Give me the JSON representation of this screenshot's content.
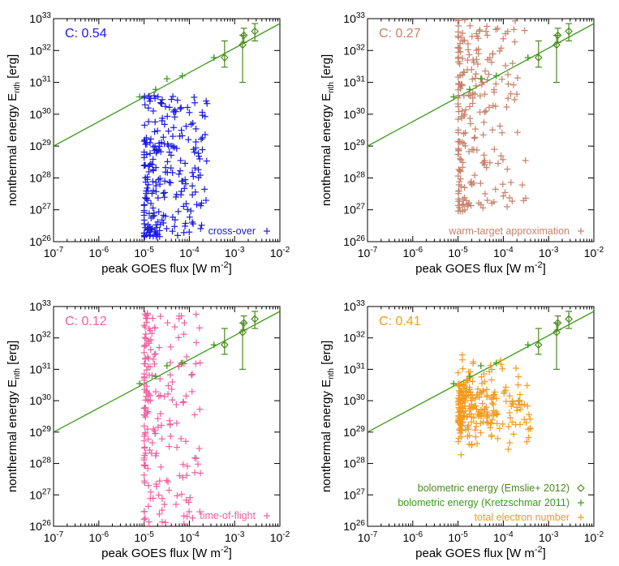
{
  "figure": {
    "colors": {
      "fit_line": "#3a9a1a",
      "emslie": "#4a8a1a",
      "kretzschmar": "#3a9a1a",
      "axis": "#000000"
    }
  },
  "chart_data": [
    {
      "type": "scatter",
      "id": "p1",
      "title": "",
      "xlabel": "peak GOES flux [W m-2]",
      "ylabel": "nonthermal energy E_nth [erg]",
      "xscale": "log",
      "yscale": "log",
      "xlim": [
        1e-07,
        0.01
      ],
      "ylim": [
        1e+26,
        1e+33
      ],
      "x_ticks": [
        "10^-7",
        "10^-6",
        "10^-5",
        "10^-4",
        "10^-3",
        "10^-2"
      ],
      "y_ticks": [
        "10^26",
        "10^27",
        "10^28",
        "10^29",
        "10^30",
        "10^31",
        "10^32",
        "10^33"
      ],
      "correlation_label": "C: 0.54",
      "legend_label": "cross-over",
      "color": "#1a1ae0",
      "fit_line": {
        "x": [
          1e-07,
          0.01
        ],
        "y": [
          1e+29,
          7e+32
        ]
      },
      "emslie": {
        "x": [
          0.0006,
          0.0015,
          0.0028,
          0.0016
        ],
        "y": [
          6e+31,
          1.5e+32,
          4e+32,
          3e+32
        ],
        "ylo": [
          3e+31,
          1e+31,
          2e+32,
          1.8e+32
        ],
        "yhi": [
          2e+32,
          3e+32,
          7e+32,
          5e+32
        ]
      },
      "kretzschmar": {
        "x": [
          8e-06,
          1.8e-05,
          3.2e-05,
          7e-05,
          0.00035
        ],
        "y": [
          3.5e+30,
          6e+30,
          1.3e+31,
          1.6e+31,
          6e+31
        ]
      },
      "points": {
        "count": 250,
        "seed": 11,
        "xmin_exp": -5.0,
        "xmax_exp": -3.6,
        "ymin_exp": 26.15,
        "ymax_exp": 30.6,
        "skew": 0.5,
        "n_floor": 20
      }
    },
    {
      "type": "scatter",
      "id": "p2",
      "title": "",
      "xlabel": "peak GOES flux [W m-2]",
      "ylabel": "nonthermal energy E_nth [erg]",
      "xscale": "log",
      "yscale": "log",
      "xlim": [
        1e-07,
        0.01
      ],
      "ylim": [
        1e+26,
        1e+33
      ],
      "x_ticks": [
        "10^-7",
        "10^-6",
        "10^-5",
        "10^-4",
        "10^-3",
        "10^-2"
      ],
      "y_ticks": [
        "10^26",
        "10^27",
        "10^28",
        "10^29",
        "10^30",
        "10^31",
        "10^32",
        "10^33"
      ],
      "correlation_label": "C: 0.27",
      "legend_label": "warm-target approximation",
      "color": "#c8806a",
      "fit_line": {
        "x": [
          1e-07,
          0.01
        ],
        "y": [
          1e+29,
          7e+32
        ]
      },
      "emslie": {
        "x": [
          0.0006,
          0.0015,
          0.0028,
          0.0016
        ],
        "y": [
          6e+31,
          1.5e+32,
          4e+32,
          3e+32
        ],
        "ylo": [
          3e+31,
          1e+31,
          2e+32,
          1.8e+32
        ],
        "yhi": [
          2e+32,
          3e+32,
          7e+32,
          5e+32
        ]
      },
      "kretzschmar": {
        "x": [
          8e-06,
          1.8e-05,
          3.2e-05,
          7e-05,
          0.00035
        ],
        "y": [
          3.5e+30,
          6e+30,
          1.3e+31,
          1.6e+31,
          6e+31
        ]
      },
      "points": {
        "count": 230,
        "seed": 23,
        "xmin_exp": -5.0,
        "xmax_exp": -3.5,
        "ymin_exp": 26.9,
        "ymax_exp": 33.0,
        "skew": 0.5,
        "n_floor": 0
      }
    },
    {
      "type": "scatter",
      "id": "p3",
      "title": "",
      "xlabel": "peak GOES flux [W m-2]",
      "ylabel": "nonthermal energy E_nth [erg]",
      "xscale": "log",
      "yscale": "log",
      "xlim": [
        1e-07,
        0.01
      ],
      "ylim": [
        1e+26,
        1e+33
      ],
      "x_ticks": [
        "10^-7",
        "10^-6",
        "10^-5",
        "10^-4",
        "10^-3",
        "10^-2"
      ],
      "y_ticks": [
        "10^26",
        "10^27",
        "10^28",
        "10^29",
        "10^30",
        "10^31",
        "10^32",
        "10^33"
      ],
      "correlation_label": "C: 0.12",
      "legend_label": "time-of-flight",
      "color": "#f060a0",
      "fit_line": {
        "x": [
          1e-07,
          0.01
        ],
        "y": [
          1e+29,
          7e+32
        ]
      },
      "emslie": {
        "x": [
          0.0006,
          0.0015,
          0.0028,
          0.0016
        ],
        "y": [
          6e+31,
          1.5e+32,
          4e+32,
          3e+32
        ],
        "ylo": [
          3e+31,
          1e+31,
          2e+32,
          1.8e+32
        ],
        "yhi": [
          2e+32,
          3e+32,
          7e+32,
          5e+32
        ]
      },
      "kretzschmar": {
        "x": [
          8e-06,
          1.8e-05,
          3.2e-05,
          7e-05,
          0.00035
        ],
        "y": [
          3.5e+30,
          6e+30,
          1.3e+31,
          1.6e+31,
          6e+31
        ]
      },
      "points": {
        "count": 200,
        "seed": 37,
        "xmin_exp": -5.0,
        "xmax_exp": -3.7,
        "ymin_exp": 26.0,
        "ymax_exp": 32.8,
        "skew": 0.6,
        "n_floor": 0
      }
    },
    {
      "type": "scatter",
      "id": "p4",
      "title": "",
      "xlabel": "peak GOES flux [W m-2]",
      "ylabel": "nonthermal energy E_nth [erg]",
      "xscale": "log",
      "yscale": "log",
      "xlim": [
        1e-07,
        0.01
      ],
      "ylim": [
        1e+26,
        1e+33
      ],
      "x_ticks": [
        "10^-7",
        "10^-6",
        "10^-5",
        "10^-4",
        "10^-3",
        "10^-2"
      ],
      "y_ticks": [
        "10^26",
        "10^27",
        "10^28",
        "10^29",
        "10^30",
        "10^31",
        "10^32",
        "10^33"
      ],
      "correlation_label": "C: 0.41",
      "color": "#f59a20",
      "legend": [
        {
          "label": "bolometric energy (Emslie+ 2012)",
          "marker": "diamond"
        },
        {
          "label": "bolometric energy (Kretzschmar 2011)",
          "marker": "plus-green"
        },
        {
          "label": "total electron number",
          "marker": "plus-series"
        }
      ],
      "fit_line": {
        "x": [
          1e-07,
          0.01
        ],
        "y": [
          1e+29,
          7e+32
        ]
      },
      "emslie": {
        "x": [
          0.0006,
          0.0015,
          0.0028,
          0.0016
        ],
        "y": [
          6e+31,
          1.5e+32,
          4e+32,
          3e+32
        ],
        "ylo": [
          3e+31,
          1e+31,
          2e+32,
          1.8e+32
        ],
        "yhi": [
          2e+32,
          3e+32,
          7e+32,
          5e+32
        ]
      },
      "kretzschmar": {
        "x": [
          8e-06,
          1.8e-05,
          3.2e-05,
          7e-05,
          0.00035
        ],
        "y": [
          3.5e+30,
          6e+30,
          1.3e+31,
          1.6e+31,
          6e+31
        ]
      },
      "points": {
        "count": 260,
        "seed": 53,
        "xmin_exp": -5.0,
        "xmax_exp": -3.4,
        "ymin_exp": 26.0,
        "ymax_exp": 32.4,
        "skew": 0.5,
        "n_floor": 0,
        "center_exp": 30.5
      }
    }
  ]
}
